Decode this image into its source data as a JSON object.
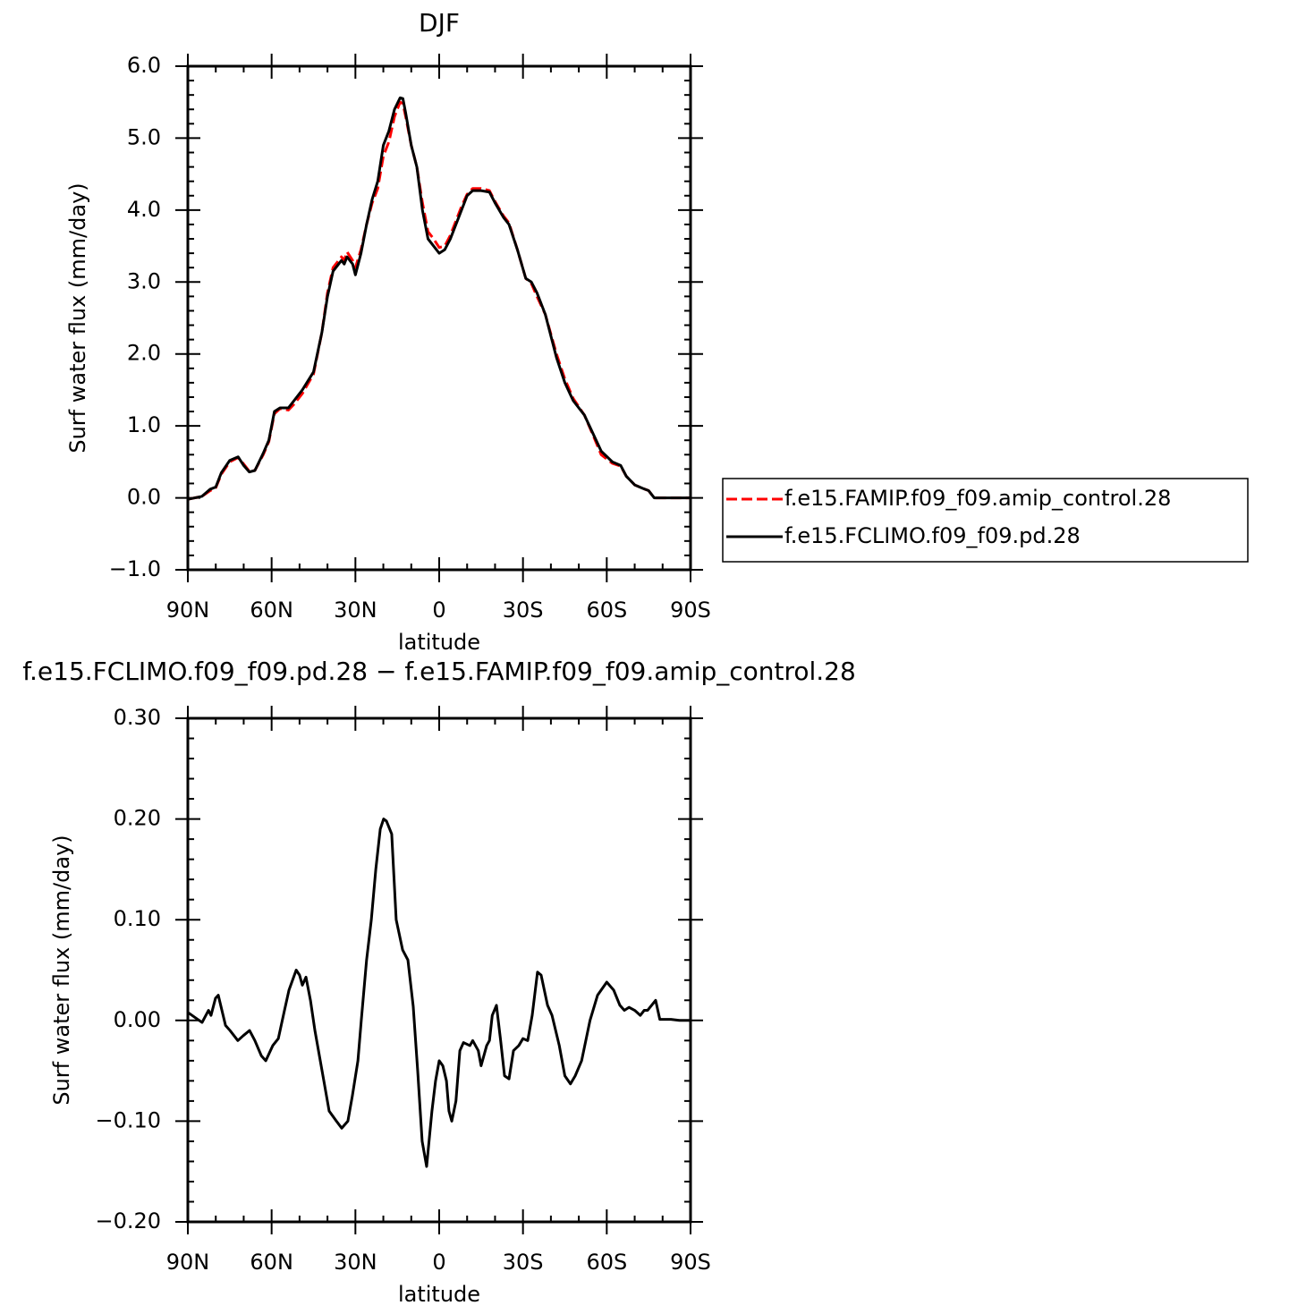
{
  "chart_data": [
    {
      "type": "line",
      "title": "DJF",
      "xlabel": "latitude",
      "ylabel": "Surf water flux (mm/day)",
      "x": [
        90,
        85,
        82,
        80,
        78,
        75,
        72,
        70,
        68,
        66,
        63,
        61,
        59,
        57,
        54,
        52,
        49,
        45,
        42,
        40,
        38,
        36,
        35,
        34,
        33,
        31,
        30,
        28,
        26,
        24,
        22,
        20,
        18,
        16,
        14,
        13,
        12,
        10,
        8,
        6,
        4,
        2,
        0,
        -2,
        -4,
        -6,
        -8,
        -10,
        -12,
        -15,
        -18,
        -20,
        -23,
        -25,
        -28,
        -31,
        -33,
        -35,
        -38,
        -42,
        -45,
        -48,
        -52,
        -55,
        -58,
        -62,
        -65,
        -67,
        -70,
        -73,
        -75,
        -77,
        -80,
        -85,
        -90
      ],
      "series": [
        {
          "name": "f.e15.FAMIP.f09_f09.amip_control.28",
          "color": "#ff0000",
          "dash": true,
          "values": [
            -0.02,
            0.02,
            0.1,
            0.14,
            0.33,
            0.5,
            0.56,
            0.47,
            0.37,
            0.38,
            0.6,
            0.78,
            1.17,
            1.24,
            1.22,
            1.3,
            1.45,
            1.72,
            2.3,
            2.85,
            3.2,
            3.3,
            3.35,
            3.3,
            3.42,
            3.3,
            3.2,
            3.45,
            3.8,
            4.1,
            4.3,
            4.75,
            4.95,
            5.3,
            5.5,
            5.48,
            5.3,
            4.9,
            4.6,
            4.1,
            3.7,
            3.6,
            3.48,
            3.5,
            3.65,
            3.85,
            4.05,
            4.22,
            4.3,
            4.3,
            4.27,
            4.12,
            3.92,
            3.82,
            3.45,
            3.05,
            2.98,
            2.8,
            2.55,
            2.0,
            1.65,
            1.38,
            1.15,
            0.88,
            0.6,
            0.48,
            0.44,
            0.3,
            0.18,
            0.13,
            0.1,
            0.0,
            0.0,
            0.0,
            0.0
          ]
        },
        {
          "name": "f.e15.FCLIMO.f09_f09.pd.28",
          "color": "#000000",
          "dash": false,
          "values": [
            -0.02,
            0.02,
            0.12,
            0.15,
            0.35,
            0.52,
            0.57,
            0.45,
            0.36,
            0.38,
            0.62,
            0.8,
            1.2,
            1.25,
            1.25,
            1.35,
            1.5,
            1.75,
            2.3,
            2.8,
            3.15,
            3.25,
            3.3,
            3.25,
            3.35,
            3.25,
            3.1,
            3.4,
            3.8,
            4.15,
            4.4,
            4.9,
            5.1,
            5.4,
            5.56,
            5.55,
            5.35,
            4.9,
            4.6,
            4.0,
            3.6,
            3.5,
            3.4,
            3.45,
            3.6,
            3.8,
            4.0,
            4.2,
            4.27,
            4.27,
            4.25,
            4.1,
            3.9,
            3.8,
            3.45,
            3.05,
            3.0,
            2.85,
            2.55,
            1.95,
            1.6,
            1.35,
            1.15,
            0.9,
            0.65,
            0.5,
            0.45,
            0.3,
            0.18,
            0.13,
            0.1,
            0.0,
            0.0,
            0.0,
            0.0
          ]
        }
      ],
      "xlim": [
        90,
        -90
      ],
      "xticks": [
        {
          "value": 90,
          "label": "90N"
        },
        {
          "value": 60,
          "label": "60N"
        },
        {
          "value": 30,
          "label": "30N"
        },
        0,
        {
          "value": -30,
          "label": "30S"
        },
        {
          "value": -60,
          "label": "60S"
        },
        {
          "value": -90,
          "label": "90S"
        }
      ],
      "ylim": [
        -1,
        6
      ],
      "yticks": [
        {
          "value": -1,
          "label": "−1.0"
        },
        {
          "value": 0,
          "label": "0.0"
        },
        {
          "value": 1,
          "label": "1.0"
        },
        {
          "value": 2,
          "label": "2.0"
        },
        {
          "value": 3,
          "label": "3.0"
        },
        {
          "value": 4,
          "label": "4.0"
        },
        {
          "value": 5,
          "label": "5.0"
        },
        {
          "value": 6,
          "label": "6.0"
        }
      ],
      "legend": "right"
    },
    {
      "type": "line",
      "title": "f.e15.FCLIMO.f09_f09.pd.28 − f.e15.FAMIP.f09_f09.amip_control.28",
      "xlabel": "latitude",
      "ylabel": "Surf water flux (mm/day)",
      "x": [
        90,
        84.9,
        82.6,
        81.7,
        80.1,
        79.1,
        76.5,
        74.9,
        72.1,
        70.1,
        67.9,
        66,
        63.7,
        62.1,
        59.6,
        57.6,
        55.4,
        53.8,
        51.2,
        50,
        49,
        47.7,
        46.1,
        44.5,
        41.3,
        39.4,
        36.8,
        34.9,
        32.7,
        31.1,
        29.1,
        27.9,
        26,
        24.3,
        22.7,
        21.1,
        19.9,
        18.9,
        17,
        15.4,
        13.1,
        11.2,
        9.3,
        7.7,
        6.1,
        4.5,
        2.6,
        1.3,
        0,
        -1.3,
        -2.6,
        -3.5,
        -4.5,
        -6,
        -7.4,
        -8.7,
        -11,
        -12,
        -14,
        -15,
        -17,
        -18,
        -19,
        -20.5,
        -22,
        -23.4,
        -25,
        -26.6,
        -28.5,
        -30,
        -31.7,
        -33.3,
        -35.2,
        -36.5,
        -38.8,
        -40.4,
        -43,
        -45,
        -47,
        -48.7,
        -51,
        -54,
        -56.7,
        -60,
        -62.5,
        -64.7,
        -66.3,
        -68,
        -70,
        -72,
        -73.4,
        -74.6,
        -77.5,
        -79,
        -83,
        -86,
        -90
      ],
      "series": [
        {
          "color": "#000000",
          "dash": false,
          "values": [
            0.008,
            -0.002,
            0.01,
            0.005,
            0.022,
            0.025,
            -0.005,
            -0.01,
            -0.02,
            -0.015,
            -0.01,
            -0.02,
            -0.035,
            -0.04,
            -0.025,
            -0.018,
            0.01,
            0.03,
            0.05,
            0.045,
            0.035,
            0.043,
            0.02,
            -0.01,
            -0.06,
            -0.09,
            -0.1,
            -0.107,
            -0.1,
            -0.075,
            -0.04,
            0.0,
            0.06,
            0.1,
            0.15,
            0.19,
            0.2,
            0.198,
            0.185,
            0.1,
            0.07,
            0.06,
            0.014,
            -0.05,
            -0.12,
            -0.145,
            -0.09,
            -0.06,
            -0.04,
            -0.045,
            -0.06,
            -0.09,
            -0.1,
            -0.08,
            -0.03,
            -0.022,
            -0.025,
            -0.02,
            -0.03,
            -0.045,
            -0.025,
            -0.02,
            0.005,
            0.015,
            -0.02,
            -0.055,
            -0.058,
            -0.03,
            -0.025,
            -0.018,
            -0.02,
            0.005,
            0.048,
            0.045,
            0.015,
            0.005,
            -0.025,
            -0.055,
            -0.063,
            -0.055,
            -0.04,
            0.0,
            0.025,
            0.038,
            0.03,
            0.015,
            0.01,
            0.013,
            0.01,
            0.005,
            0.01,
            0.01,
            0.02,
            0.001,
            0.001,
            0.0,
            0.0
          ]
        }
      ],
      "xlim": [
        90,
        -90
      ],
      "xticks": [
        {
          "value": 90,
          "label": "90N"
        },
        {
          "value": 60,
          "label": "60N"
        },
        {
          "value": 30,
          "label": "30N"
        },
        0,
        {
          "value": -30,
          "label": "30S"
        },
        {
          "value": -60,
          "label": "60S"
        },
        {
          "value": -90,
          "label": "90S"
        }
      ],
      "ylim": [
        -0.2,
        0.3
      ],
      "yticks": [
        {
          "value": -0.2,
          "label": "−0.20"
        },
        {
          "value": -0.1,
          "label": "−0.10"
        },
        {
          "value": 0,
          "label": "0.00"
        },
        {
          "value": 0.1,
          "label": "0.10"
        },
        {
          "value": 0.2,
          "label": "0.20"
        },
        {
          "value": 0.3,
          "label": "0.30"
        }
      ]
    }
  ]
}
